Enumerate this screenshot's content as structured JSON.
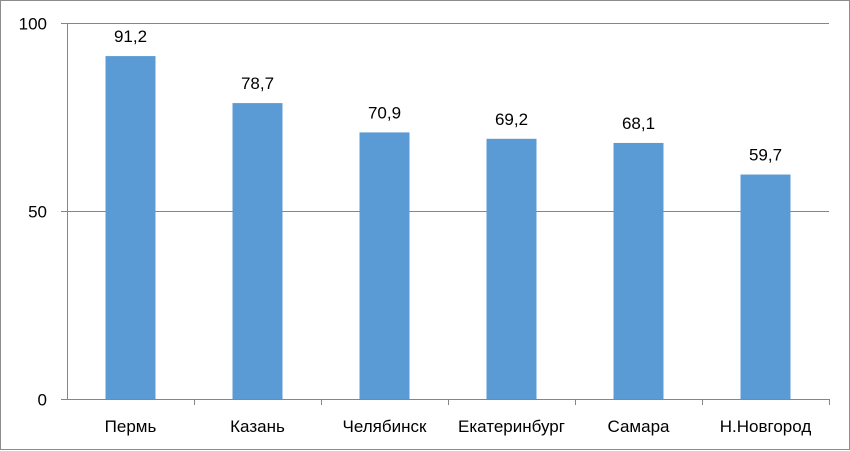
{
  "chart_data": {
    "type": "bar",
    "title": "",
    "xlabel": "",
    "ylabel": "",
    "categories": [
      "Пермь",
      "Казань",
      "Челябинск",
      "Екатеринбург",
      "Самара",
      "Н.Новгород"
    ],
    "values": [
      91.2,
      78.7,
      70.9,
      69.2,
      68.1,
      59.7
    ],
    "data_labels": [
      "91,2",
      "78,7",
      "70,9",
      "69,2",
      "68,1",
      "59,7"
    ],
    "ylim": [
      0,
      100
    ],
    "yticks": [
      0,
      50,
      100
    ],
    "ytick_labels": [
      "0",
      "50",
      "100"
    ],
    "grid": true,
    "legend": "none",
    "bar_color": "#5b9bd5",
    "grid_color": "#868686"
  }
}
